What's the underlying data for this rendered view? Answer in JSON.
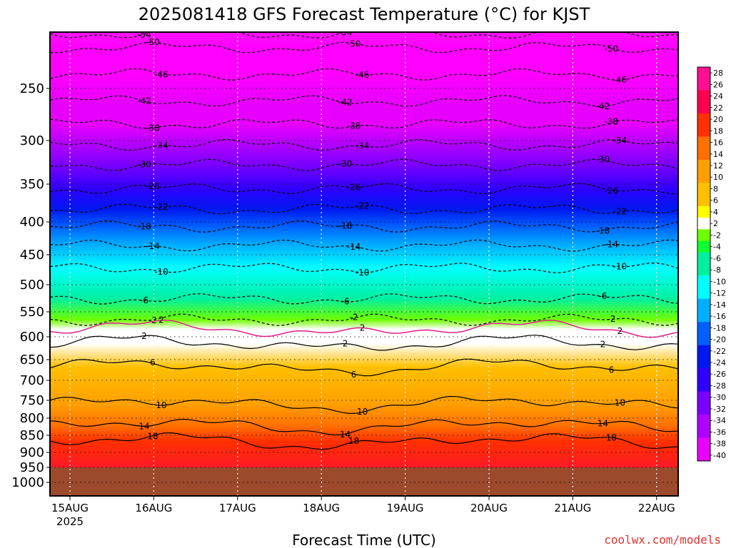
{
  "header": {
    "title": "2025081418 GFS Forecast Temperature (°C) for KJST"
  },
  "footer": {
    "credit": "coolwx.com/models"
  },
  "chart_data": {
    "type": "heatmap",
    "title": "2025081418 GFS Forecast Temperature (°C) for KJST",
    "xlabel": "Forecast Time (UTC)",
    "ylabel": "",
    "x_ticks": [
      "15AUG",
      "16AUG",
      "17AUG",
      "18AUG",
      "19AUG",
      "20AUG",
      "21AUG",
      "22AUG"
    ],
    "x_year_label": "2025",
    "y_ticks": [
      250,
      300,
      350,
      400,
      450,
      500,
      550,
      600,
      650,
      700,
      750,
      800,
      850,
      900,
      950,
      1000
    ],
    "y_axis_inverted": true,
    "ground_level_hpa": 950,
    "colorbar_ticks": [
      28,
      26,
      24,
      22,
      20,
      18,
      16,
      14,
      12,
      10,
      8,
      6,
      4,
      2,
      -2,
      -4,
      -6,
      -8,
      -10,
      -12,
      -14,
      -16,
      -18,
      -20,
      -22,
      -24,
      -26,
      -28,
      -30,
      -32,
      -34,
      -36,
      -38,
      -40
    ],
    "contour_levels": [
      {
        "temp": -54,
        "level_hpa": 203
      },
      {
        "temp": -50,
        "level_hpa": 215
      },
      {
        "temp": -46,
        "level_hpa": 238
      },
      {
        "temp": -42,
        "level_hpa": 262
      },
      {
        "temp": -38,
        "level_hpa": 284
      },
      {
        "temp": -34,
        "level_hpa": 305
      },
      {
        "temp": -30,
        "level_hpa": 328
      },
      {
        "temp": -26,
        "level_hpa": 356
      },
      {
        "temp": -22,
        "level_hpa": 383
      },
      {
        "temp": -18,
        "level_hpa": 407
      },
      {
        "temp": -14,
        "level_hpa": 436
      },
      {
        "temp": -10,
        "level_hpa": 472
      },
      {
        "temp": -6,
        "level_hpa": 526
      },
      {
        "temp": -2,
        "level_hpa": 566
      },
      {
        "temp": 2,
        "level_hpa": 585
      },
      {
        "temp": 2,
        "level_hpa": 615
      },
      {
        "temp": 6,
        "level_hpa": 668
      },
      {
        "temp": 10,
        "level_hpa": 760
      },
      {
        "temp": 14,
        "level_hpa": 822
      },
      {
        "temp": 18,
        "level_hpa": 868
      }
    ],
    "grid": true,
    "legend_position": "right"
  }
}
